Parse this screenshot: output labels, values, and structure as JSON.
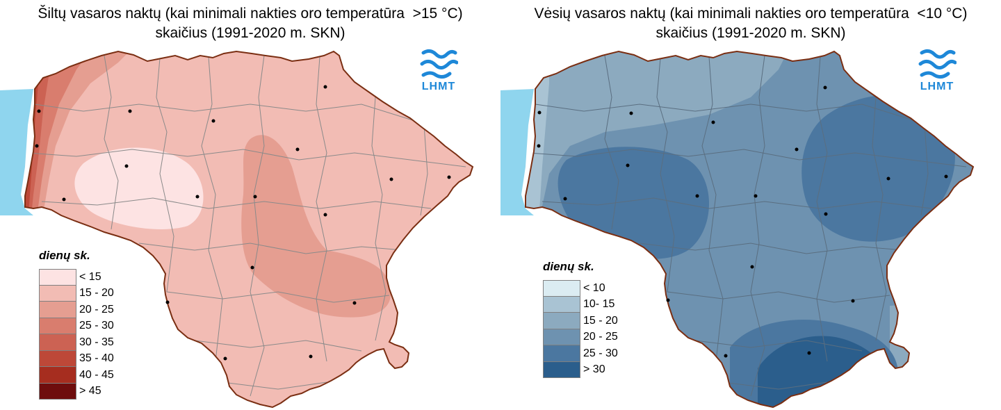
{
  "panels": [
    {
      "title_line1": "Šiltų vasaros naktų (kai minimali nakties oro temperatūra  >15 °C)",
      "title_line2": "skaičius (1991-2020 m. SKN)",
      "logo_text": "LHMT",
      "legend_title": "dienų sk.",
      "legend": [
        {
          "label": "< 15",
          "color": "#fde3e3"
        },
        {
          "label": "15 - 20",
          "color": "#f2bcb4"
        },
        {
          "label": "20 - 25",
          "color": "#e59e91"
        },
        {
          "label": "25 - 30",
          "color": "#d97d6e"
        },
        {
          "label": "30 - 35",
          "color": "#cc6253"
        },
        {
          "label": "35 - 40",
          "color": "#bd4838"
        },
        {
          "label": "40 - 45",
          "color": "#a62d1f"
        },
        {
          "label": "> 45",
          "color": "#6e0d0d"
        }
      ]
    },
    {
      "title_line1": "Vėsių vasaros naktų (kai minimali nakties oro temperatūra  <10 °C)",
      "title_line2": "skaičius (1991-2020 m. SKN)",
      "logo_text": "LHMT",
      "legend_title": "dienų sk.",
      "legend": [
        {
          "label": "< 10",
          "color": "#dbecf2"
        },
        {
          "label": "10- 15",
          "color": "#a9c3d3"
        },
        {
          "label": "15 - 20",
          "color": "#8caabf"
        },
        {
          "label": "20 - 25",
          "color": "#6e92b0"
        },
        {
          "label": "25 - 30",
          "color": "#4b77a0"
        },
        {
          "label": "> 30",
          "color": "#2b5e8c"
        }
      ]
    }
  ],
  "colors": {
    "sea": "#8fd5ee",
    "border": "#7a2e12",
    "districts": "#8a8a8a",
    "logo": "#1e88d8"
  },
  "icons": [
    "lhmt-logo-icon",
    "station-dot-icon"
  ]
}
